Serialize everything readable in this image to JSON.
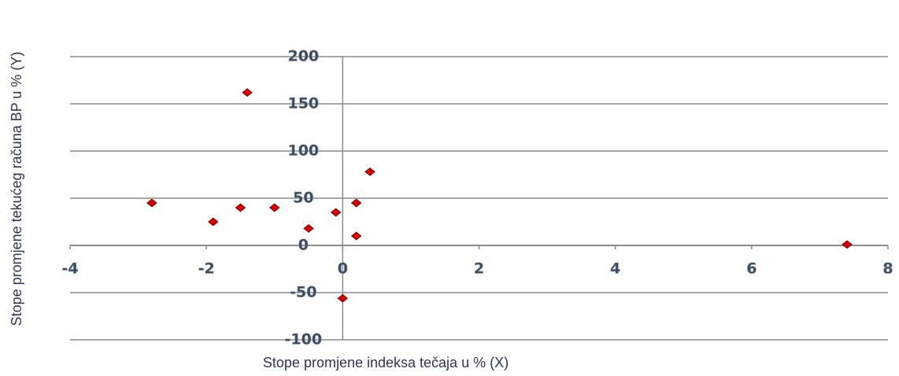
{
  "chart_data": {
    "type": "scatter",
    "x_label": "Stope promjene indeksa tečaja u % (X)",
    "y_label": "Stope promjene tekućeg računa BP u % (Y)",
    "series": [
      {
        "color": "#d40000",
        "x": [
          -2.8,
          -1.9,
          -1.5,
          -1.4,
          -1.0,
          -0.5,
          -0.1,
          0,
          0.2,
          0.2,
          0.4,
          7.4
        ],
        "values": [
          45,
          25,
          40,
          162,
          40,
          18,
          35,
          -56,
          45,
          10,
          78,
          1
        ]
      }
    ],
    "xlim": [
      -4,
      8
    ],
    "xticks": [
      -4,
      -2,
      0,
      2,
      4,
      6,
      8
    ],
    "ylim": [
      -100,
      200
    ],
    "yticks": [
      -100,
      -50,
      0,
      50,
      100,
      150,
      200
    ],
    "grid": true
  }
}
